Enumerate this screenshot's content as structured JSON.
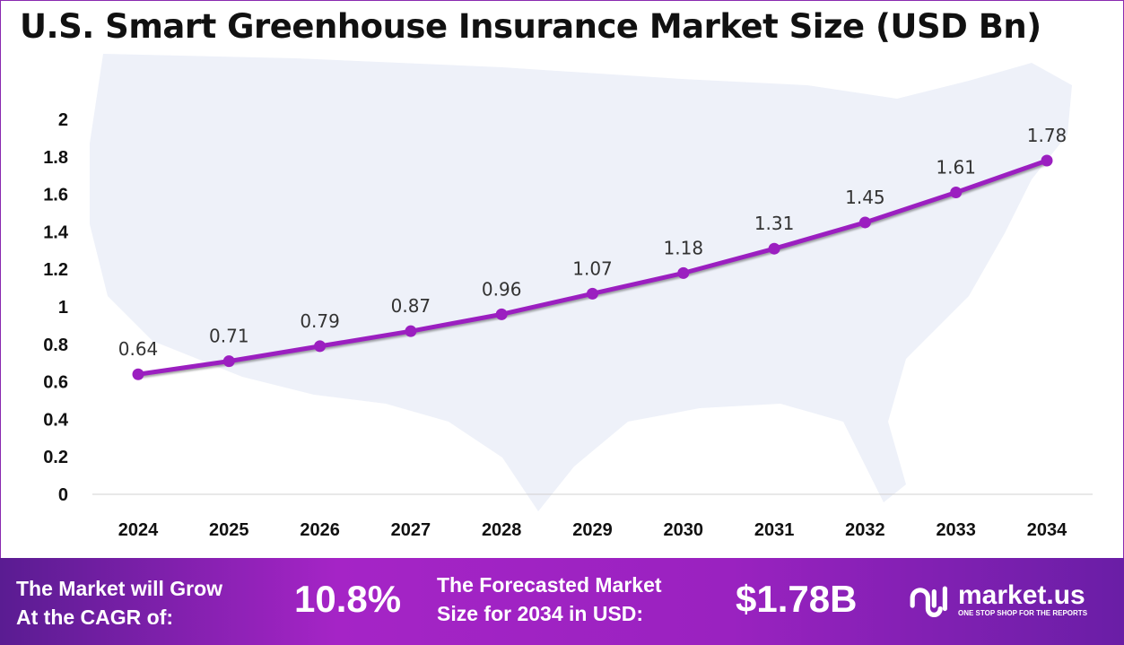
{
  "chart_data": {
    "type": "line",
    "title": "U.S. Smart Greenhouse Insurance Market Size (USD Bn)",
    "categories": [
      "2024",
      "2025",
      "2026",
      "2027",
      "2028",
      "2029",
      "2030",
      "2031",
      "2032",
      "2033",
      "2034"
    ],
    "values": [
      0.64,
      0.71,
      0.79,
      0.87,
      0.96,
      1.07,
      1.18,
      1.31,
      1.45,
      1.61,
      1.78
    ],
    "data_labels": [
      "0.64",
      "0.71",
      "0.79",
      "0.87",
      "0.96",
      "1.07",
      "1.18",
      "1.31",
      "1.45",
      "1.61",
      "1.78"
    ],
    "yticks": [
      "0",
      "0.2",
      "0.4",
      "0.6",
      "0.8",
      "1",
      "1.2",
      "1.4",
      "1.6",
      "1.8",
      "2"
    ],
    "ylim": [
      0,
      2
    ],
    "grid": false,
    "line_color": "#9b1fc0",
    "xlabel": "",
    "ylabel": ""
  },
  "banner": {
    "cagr_label_line1": "The Market will Grow",
    "cagr_label_line2": "At the CAGR of:",
    "cagr_value": "10.8%",
    "forecast_label_line1": "The Forecasted Market",
    "forecast_label_line2": "Size for 2034 in USD:",
    "forecast_value": "$1.78B",
    "logo_name": "market.us",
    "logo_tagline": "ONE STOP SHOP FOR THE REPORTS"
  }
}
